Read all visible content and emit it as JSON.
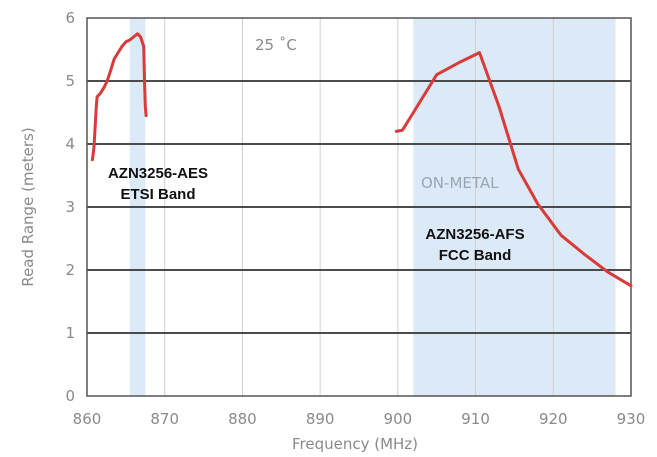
{
  "chart_data": {
    "type": "line",
    "title": "",
    "xlabel": "Frequency (MHz)",
    "ylabel": "Read Range (meters)",
    "xlim": [
      860,
      930
    ],
    "ylim": [
      0,
      6
    ],
    "x_ticks": [
      "860",
      "870",
      "880",
      "890",
      "900",
      "910",
      "920",
      "930"
    ],
    "y_ticks": [
      "0",
      "1",
      "2",
      "3",
      "4",
      "5",
      "6"
    ],
    "grid": "horizontal",
    "colors": {
      "line": "#d93a3a",
      "band_shade": "#dce9f6",
      "grid": "#333333"
    },
    "shaded_regions": [
      {
        "x_start": 865.5,
        "x_end": 867.5
      },
      {
        "x_start": 902,
        "x_end": 928
      }
    ],
    "annotations": {
      "temperature": "25 ˚C",
      "on_metal": "ON-METAL",
      "etsi_line1": "AZN3256-AES",
      "etsi_line2": "ETSI Band",
      "fcc_line1": "AZN3256-AFS",
      "fcc_line2": "FCC Band"
    },
    "series": [
      {
        "x": [
          860.7,
          860.9,
          861.2,
          861.3,
          861.7,
          862.2,
          862.6,
          863.0,
          863.5,
          864.0,
          864.5,
          865.0,
          865.5,
          866.0,
          866.5,
          866.9,
          867.3,
          867.4,
          867.5,
          867.6
        ],
        "y": [
          3.75,
          3.95,
          4.6,
          4.75,
          4.8,
          4.9,
          5.0,
          5.15,
          5.35,
          5.45,
          5.55,
          5.62,
          5.65,
          5.7,
          5.75,
          5.7,
          5.55,
          5.0,
          4.6,
          4.45
        ]
      },
      {
        "x": [
          899.8,
          900.6,
          902.0,
          905.0,
          908.0,
          910.5,
          913.0,
          915.5,
          918.0,
          921.0,
          924.0,
          927.0,
          930.0
        ],
        "y": [
          4.2,
          4.22,
          4.5,
          5.1,
          5.3,
          5.45,
          4.6,
          3.6,
          3.05,
          2.55,
          2.25,
          1.97,
          1.75
        ]
      }
    ]
  }
}
